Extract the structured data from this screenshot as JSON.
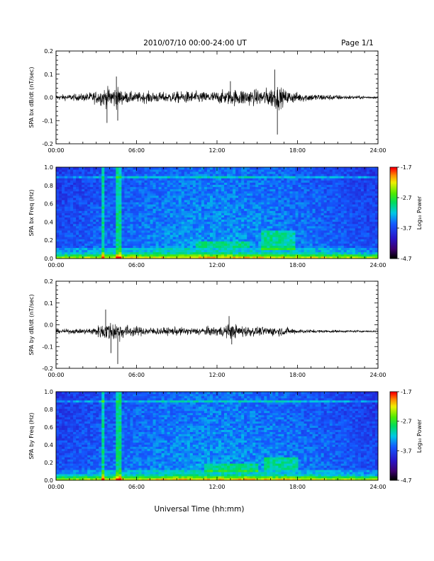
{
  "header": {
    "title": "2010/07/10  00:00-24:00 UT",
    "page": "Page 1/1"
  },
  "xaxis": {
    "label": "Universal Time (hh:mm)",
    "ticks": [
      "00:00",
      "06:00",
      "12:00",
      "18:00",
      "24:00"
    ],
    "range_hours": [
      0,
      24
    ]
  },
  "chart_data": [
    {
      "type": "line",
      "ylabel": "SPA bx dB/dt (nT/sec)",
      "ylim": [
        -0.2,
        0.2
      ],
      "yticks": [
        "0.2",
        "0.1",
        "0.0",
        "-0.1",
        "-0.2"
      ],
      "ytick_values": [
        0.2,
        0.1,
        0.0,
        -0.1,
        -0.2
      ],
      "baseline": 0.0,
      "color": "#000000",
      "envelope": {
        "x_hours": [
          0,
          1,
          2,
          3,
          3.5,
          4,
          4.5,
          5,
          6,
          7,
          8,
          9,
          10,
          11,
          12,
          13,
          14,
          15,
          16,
          16.5,
          17,
          18,
          19,
          20,
          21,
          22,
          23,
          24
        ],
        "amplitude": [
          0.02,
          0.025,
          0.03,
          0.05,
          0.07,
          0.08,
          0.09,
          0.05,
          0.04,
          0.045,
          0.04,
          0.045,
          0.05,
          0.045,
          0.05,
          0.06,
          0.07,
          0.06,
          0.08,
          0.1,
          0.06,
          0.04,
          0.03,
          0.025,
          0.02,
          0.015,
          0.012,
          0.01
        ]
      },
      "spikes": [
        {
          "x": 3.8,
          "y": -0.11
        },
        {
          "x": 4.5,
          "y": 0.09
        },
        {
          "x": 4.6,
          "y": -0.1
        },
        {
          "x": 16.3,
          "y": 0.12
        },
        {
          "x": 16.5,
          "y": -0.16
        },
        {
          "x": 13.0,
          "y": 0.07
        }
      ]
    },
    {
      "type": "heatmap",
      "ylabel": "SPA bx Freq (Hz)",
      "ylim": [
        0.0,
        1.0
      ],
      "yticks": [
        "1.0",
        "0.8",
        "0.6",
        "0.4",
        "0.2",
        "0.0"
      ],
      "ytick_values": [
        1.0,
        0.8,
        0.6,
        0.4,
        0.2,
        0.0
      ],
      "colorbar": {
        "label": "Log₁₀ Power",
        "ticks": [
          "-1.7",
          "-2.7",
          "-3.7",
          "-4.7"
        ],
        "tick_values": [
          -1.7,
          -2.7,
          -3.7,
          -4.7
        ],
        "range": [
          -4.7,
          -1.7
        ]
      },
      "features": {
        "vertical_lines_hours": [
          3.5,
          4.6
        ],
        "horizontal_line_hz": 0.9,
        "enhanced_bands": [
          {
            "x_hours": [
              10.5,
              14.5
            ],
            "f_hz": [
              0.12,
              0.2
            ]
          },
          {
            "x_hours": [
              15.3,
              17.8
            ],
            "f_hz": [
              0.1,
              0.3
            ]
          }
        ]
      }
    },
    {
      "type": "line",
      "ylabel": "SPA by dB/dt (nT/sec)",
      "ylim": [
        -0.2,
        0.2
      ],
      "yticks": [
        "0.2",
        "0.1",
        "0.0",
        "-0.1",
        "-0.2"
      ],
      "ytick_values": [
        0.2,
        0.1,
        0.0,
        -0.1,
        -0.2
      ],
      "baseline": -0.03,
      "color": "#000000",
      "envelope": {
        "x_hours": [
          0,
          1,
          2,
          3,
          3.5,
          4,
          4.5,
          5,
          6,
          7,
          8,
          9,
          10,
          11,
          12,
          13,
          14,
          15,
          16,
          17,
          18,
          19,
          20,
          21,
          22,
          23,
          24
        ],
        "amplitude": [
          0.015,
          0.02,
          0.02,
          0.04,
          0.07,
          0.08,
          0.09,
          0.06,
          0.04,
          0.035,
          0.03,
          0.035,
          0.03,
          0.035,
          0.04,
          0.06,
          0.05,
          0.035,
          0.04,
          0.035,
          0.02,
          0.015,
          0.012,
          0.01,
          0.01,
          0.008,
          0.008
        ]
      },
      "spikes": [
        {
          "x": 3.7,
          "y": 0.07
        },
        {
          "x": 4.6,
          "y": -0.18
        },
        {
          "x": 4.1,
          "y": -0.13
        },
        {
          "x": 13.1,
          "y": -0.09
        },
        {
          "x": 12.9,
          "y": 0.04
        }
      ]
    },
    {
      "type": "heatmap",
      "ylabel": "SPA by Freq (Hz)",
      "ylim": [
        0.0,
        1.0
      ],
      "yticks": [
        "1.0",
        "0.8",
        "0.6",
        "0.4",
        "0.2",
        "0.0"
      ],
      "ytick_values": [
        1.0,
        0.8,
        0.6,
        0.4,
        0.2,
        0.0
      ],
      "colorbar": {
        "label": "Log₁₀ Power",
        "ticks": [
          "-1.7",
          "-2.7",
          "-3.7",
          "-4.7"
        ],
        "tick_values": [
          -1.7,
          -2.7,
          -3.7,
          -4.7
        ],
        "range": [
          -4.7,
          -1.7
        ]
      },
      "features": {
        "vertical_lines_hours": [
          3.5,
          4.6
        ],
        "horizontal_line_hz": 0.9,
        "enhanced_bands": [
          {
            "x_hours": [
              11,
              15
            ],
            "f_hz": [
              0.1,
              0.2
            ]
          },
          {
            "x_hours": [
              15.5,
              18
            ],
            "f_hz": [
              0.12,
              0.25
            ]
          }
        ]
      }
    }
  ]
}
